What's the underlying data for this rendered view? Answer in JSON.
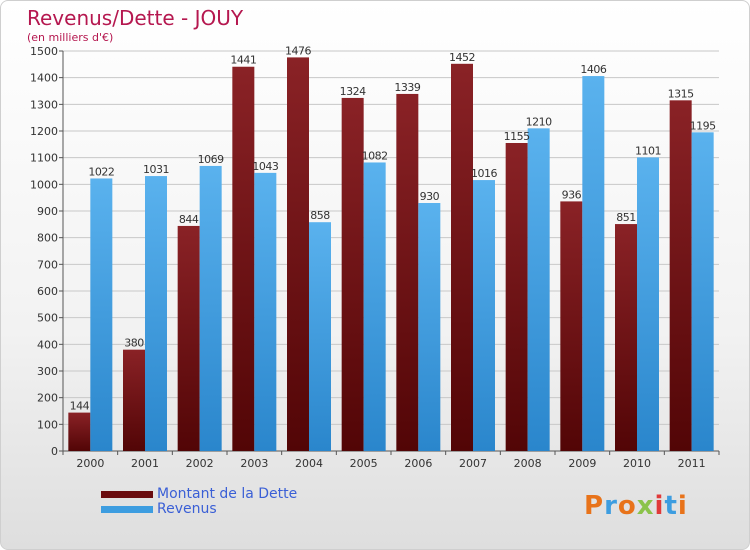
{
  "title": "Revenus/Dette - JOUY",
  "subtitle": "(en milliers d'€)",
  "legend": {
    "debt_label": "Montant de la Dette",
    "revenue_label": "Revenus"
  },
  "logo_text": "Proxiti",
  "colors": {
    "debt": "#7b1416",
    "debt_dark": "#4a0406",
    "revenue": "#4aa6e6",
    "revenue_dark": "#1f7fc7",
    "title": "#b5174f",
    "legend_text": "#3a5fd6"
  },
  "chart_data": {
    "type": "bar",
    "title": "Revenus/Dette - JOUY",
    "subtitle": "(en milliers d'€)",
    "categories": [
      "2000",
      "2001",
      "2002",
      "2003",
      "2004",
      "2005",
      "2006",
      "2007",
      "2008",
      "2009",
      "2010",
      "2011"
    ],
    "series": [
      {
        "name": "Montant de la Dette",
        "values": [
          144,
          380,
          844,
          1441,
          1476,
          1324,
          1339,
          1452,
          1155,
          936,
          851,
          1315
        ]
      },
      {
        "name": "Revenus",
        "values": [
          1022,
          1031,
          1069,
          1043,
          858,
          1082,
          930,
          1016,
          1210,
          1406,
          1101,
          1195
        ]
      }
    ],
    "ylim": [
      0,
      1500
    ],
    "yticks": [
      0,
      100,
      200,
      300,
      400,
      500,
      600,
      700,
      800,
      900,
      1000,
      1100,
      1200,
      1300,
      1400,
      1500
    ],
    "grid": true,
    "legend_position": "bottom-left"
  }
}
